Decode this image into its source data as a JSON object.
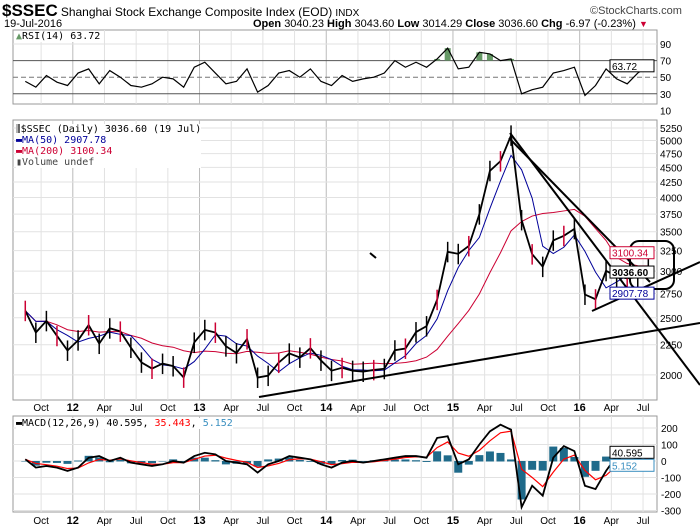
{
  "header": {
    "symbol": "$SSEC",
    "name": "Shanghai Stock Exchange Composite Index (EOD)",
    "exchange": "INDX",
    "copyright": "©StockCharts.com",
    "date": "19-Jul-2016",
    "open_label": "Open",
    "open": "3040.23",
    "high_label": "High",
    "high": "3043.60",
    "low_label": "Low",
    "low": "3014.29",
    "close_label": "Close",
    "close": "3036.60",
    "chg_label": "Chg",
    "chg": "-6.97 (-0.23%)",
    "chg_icon": "triangle-down-icon",
    "chg_color": "#cc0033"
  },
  "rsi": {
    "label": "RSI(14) 63.72",
    "value": "63.72",
    "ticks": [
      "90",
      "70",
      "50",
      "30",
      "10"
    ]
  },
  "main": {
    "legend": "$SSEC (Daily) 3036.60 (19 Jul)",
    "ma50_label": "MA(50) 2907.78",
    "ma200_label": "MA(200) 3100.34",
    "volume_label": "Volume undef",
    "price_tag": "3036.60",
    "ma50_tag": "2907.78",
    "ma200_tag": "3100.34",
    "ticks": [
      "5250",
      "5000",
      "4750",
      "4500",
      "4250",
      "4000",
      "3750",
      "3500",
      "3250",
      "3000",
      "2750",
      "2500",
      "2250",
      "2000"
    ]
  },
  "macd": {
    "label": "MACD(12,26,9)",
    "macd": "40.595",
    "signal": "35.443",
    "hist": "5.152",
    "ticks": [
      "200",
      "100",
      "0",
      "-100",
      "-200",
      "-300"
    ]
  },
  "colors": {
    "price": "#000000",
    "ma50": "#000099",
    "ma200": "#cc0033",
    "rsi_fill": "#669966",
    "macd": "#000000",
    "signal": "#ff0000",
    "hist": "#1f6a8a"
  },
  "xaxis": {
    "labels": [
      {
        "t": "Oct",
        "m": 2
      },
      {
        "t": "12",
        "m": 5,
        "bold": true
      },
      {
        "t": "Apr",
        "m": 8
      },
      {
        "t": "Jul",
        "m": 11
      },
      {
        "t": "Oct",
        "m": 14
      },
      {
        "t": "13",
        "m": 17,
        "bold": true
      },
      {
        "t": "Apr",
        "m": 20
      },
      {
        "t": "Jul",
        "m": 23
      },
      {
        "t": "Oct",
        "m": 26
      },
      {
        "t": "14",
        "m": 29,
        "bold": true
      },
      {
        "t": "Apr",
        "m": 32
      },
      {
        "t": "Jul",
        "m": 35
      },
      {
        "t": "Oct",
        "m": 38
      },
      {
        "t": "15",
        "m": 41,
        "bold": true
      },
      {
        "t": "Apr",
        "m": 44
      },
      {
        "t": "Jul",
        "m": 47
      },
      {
        "t": "Oct",
        "m": 50
      },
      {
        "t": "16",
        "m": 53,
        "bold": true
      },
      {
        "t": "Apr",
        "m": 56
      },
      {
        "t": "Jul",
        "m": 59
      }
    ]
  },
  "chart_data": {
    "type": "line",
    "title": "$SSEC Shanghai Stock Exchange Composite Index (EOD)",
    "period": "Aug 2011 - Jul 2016 (monthly approx.)",
    "yscale": "log",
    "ylim": [
      1850,
      5400
    ],
    "close": [
      2570,
      2360,
      2470,
      2330,
      2200,
      2290,
      2430,
      2260,
      2400,
      2370,
      2225,
      2100,
      2050,
      2090,
      2070,
      1980,
      2270,
      2385,
      2360,
      2237,
      2178,
      2300,
      1979,
      1994,
      2098,
      2175,
      2141,
      2220,
      2116,
      2033,
      2056,
      2033,
      2026,
      2039,
      2048,
      2202,
      2217,
      2364,
      2420,
      2683,
      3235,
      3210,
      3310,
      3748,
      4441,
      4612,
      5100,
      3664,
      3206,
      3053,
      3383,
      3445,
      3539,
      2738,
      2688,
      3004,
      2938,
      2917,
      2930,
      3036.6
    ],
    "rsi": [
      45,
      38,
      52,
      44,
      40,
      55,
      60,
      42,
      58,
      50,
      40,
      38,
      42,
      50,
      48,
      38,
      62,
      68,
      55,
      42,
      45,
      60,
      32,
      40,
      55,
      58,
      50,
      60,
      45,
      40,
      52,
      45,
      48,
      50,
      55,
      70,
      62,
      68,
      62,
      72,
      85,
      60,
      62,
      80,
      78,
      70,
      72,
      30,
      35,
      38,
      55,
      58,
      62,
      28,
      40,
      60,
      48,
      42,
      55,
      63.72
    ],
    "macd": [
      10,
      -40,
      -30,
      -40,
      -60,
      -40,
      20,
      30,
      0,
      20,
      -10,
      -20,
      -30,
      -20,
      0,
      -10,
      30,
      50,
      40,
      0,
      -10,
      -20,
      -70,
      -20,
      0,
      30,
      20,
      10,
      -20,
      -40,
      -10,
      0,
      -10,
      0,
      10,
      20,
      30,
      30,
      20,
      140,
      150,
      -20,
      10,
      100,
      180,
      220,
      190,
      -280,
      -150,
      -210,
      20,
      90,
      60,
      -150,
      -170,
      -60,
      30,
      -30,
      10,
      40.595
    ]
  }
}
